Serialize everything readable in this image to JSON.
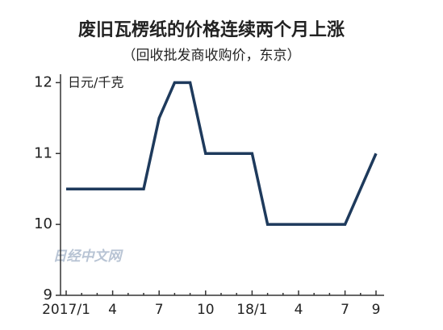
{
  "chart_data": {
    "type": "line",
    "title": "废旧瓦楞纸的价格连续两个月上涨",
    "subtitle": "（回收批发商收购价，东京）",
    "y_label": "日元/千克",
    "watermark": "日经中文网",
    "categories": [
      "2017/1",
      null,
      null,
      "4",
      null,
      null,
      "7",
      null,
      null,
      "10",
      null,
      null,
      "18/1",
      null,
      null,
      "4",
      null,
      null,
      "7",
      null,
      "9"
    ],
    "values": [
      10.5,
      10.5,
      10.5,
      10.5,
      10.5,
      10.5,
      11.5,
      12,
      12,
      11,
      11,
      11,
      11,
      10,
      10,
      10,
      10,
      10,
      10,
      10.5,
      11
    ],
    "color": "#1e3a5c",
    "ylim": [
      9,
      12.05
    ],
    "yticks": [
      9,
      10,
      11,
      12
    ],
    "grid": false
  }
}
